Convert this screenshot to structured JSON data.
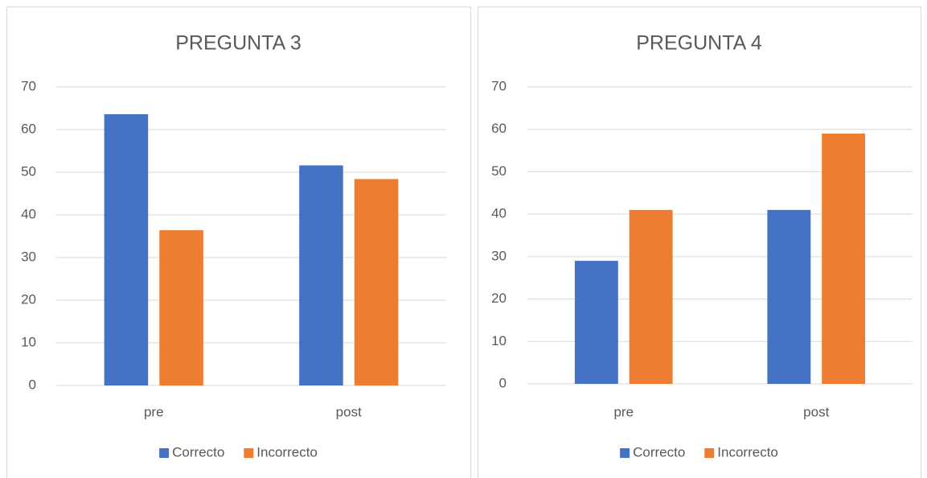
{
  "chart_data": [
    {
      "type": "bar",
      "title": "PREGUNTA 3",
      "categories": [
        "pre",
        "post"
      ],
      "series": [
        {
          "name": "Correcto",
          "color": "#4472c4",
          "values": [
            63.6,
            51.6
          ]
        },
        {
          "name": "Incorrecto",
          "color": "#ed7d31",
          "values": [
            36.4,
            48.4
          ]
        }
      ],
      "ylim": [
        0,
        70
      ],
      "yticks": [
        0,
        10,
        20,
        30,
        40,
        50,
        60,
        70
      ],
      "grid": true,
      "legend": "bottom"
    },
    {
      "type": "bar",
      "title": "PREGUNTA 4",
      "categories": [
        "pre",
        "post"
      ],
      "series": [
        {
          "name": "Correcto",
          "color": "#4472c4",
          "values": [
            29,
            41
          ]
        },
        {
          "name": "Incorrecto",
          "color": "#ed7d31",
          "values": [
            41,
            59
          ]
        }
      ],
      "ylim": [
        0,
        70
      ],
      "yticks": [
        0,
        10,
        20,
        30,
        40,
        50,
        60,
        70
      ],
      "grid": true,
      "legend": "bottom"
    }
  ]
}
